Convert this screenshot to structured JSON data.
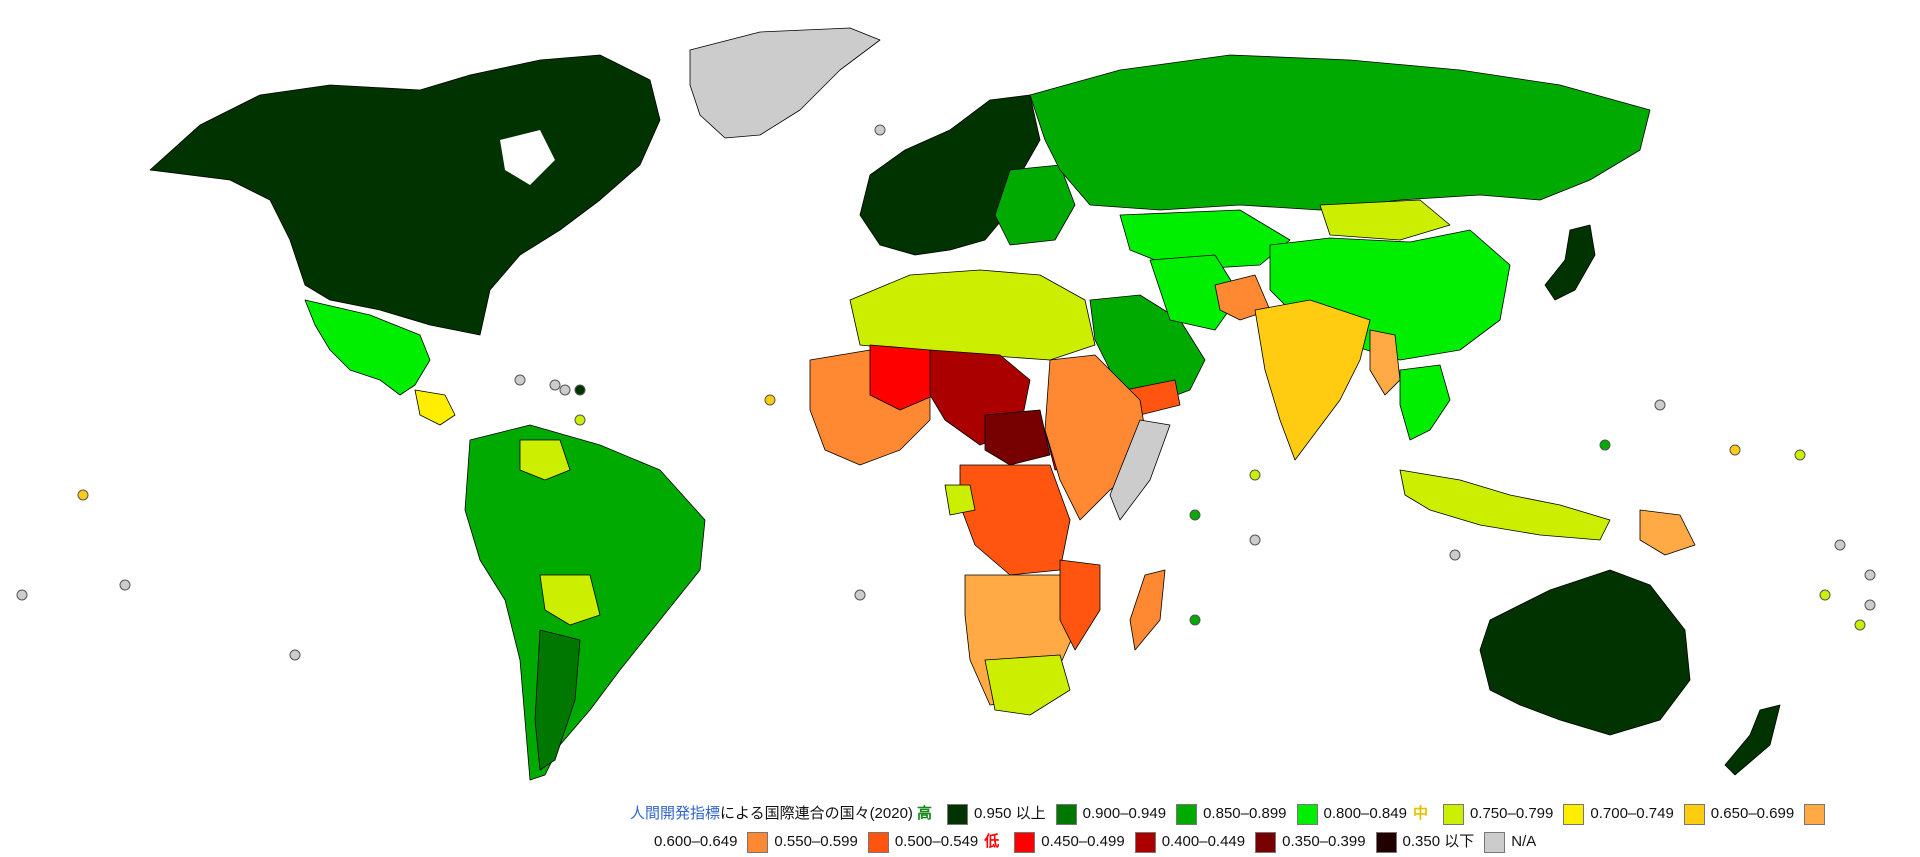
{
  "title": {
    "link_text": "人間開発指標",
    "rest": "による国際連合の国々(2020)"
  },
  "tiers": {
    "high": {
      "label": "高",
      "color": "#138a1a"
    },
    "medium": {
      "label": "中",
      "color": "#e6c300"
    },
    "low": {
      "label": "低",
      "color": "#ff0000"
    }
  },
  "legend": [
    {
      "label": "0.950 以上",
      "color": "#003300"
    },
    {
      "label": "0.900–0.949",
      "color": "#007700"
    },
    {
      "label": "0.850–0.899",
      "color": "#00aa00"
    },
    {
      "label": "0.800–0.849",
      "color": "#00ee00"
    },
    {
      "label": "0.750–0.799",
      "color": "#ccee00"
    },
    {
      "label": "0.700–0.749",
      "color": "#ffee00"
    },
    {
      "label": "0.650–0.699",
      "color": "#ffcc11"
    },
    {
      "label": "0.600–0.649",
      "color": "#ffaa44"
    },
    {
      "label": "0.550–0.599",
      "color": "#ff8833"
    },
    {
      "label": "0.500–0.549",
      "color": "#ff5511"
    },
    {
      "label": "0.450–0.499",
      "color": "#ff0000"
    },
    {
      "label": "0.400–0.449",
      "color": "#aa0000"
    },
    {
      "label": "0.350–0.399",
      "color": "#770000"
    },
    {
      "label": "0.350 以下",
      "color": "#220000"
    },
    {
      "label": "N/A",
      "color": "#cccccc"
    }
  ]
}
